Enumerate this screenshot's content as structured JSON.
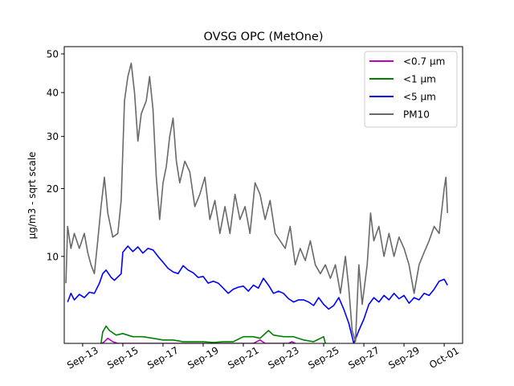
{
  "chart_data": {
    "type": "line",
    "title": "OVSG OPC (MetOne)",
    "xlabel": "",
    "ylabel": "µg/m3 - sqrt scale",
    "y_scale": "sqrt",
    "ylim": [
      2.2,
      52
    ],
    "y_ticks": [
      10,
      20,
      30,
      40,
      50
    ],
    "y_tick_labels": [
      "10",
      "20",
      "30",
      "40",
      "50"
    ],
    "x_ticks": [
      "2023-09-13",
      "2023-09-15",
      "2023-09-17",
      "2023-09-19",
      "2023-09-21",
      "2023-09-23",
      "2023-09-25",
      "2023-09-27",
      "2023-09-29",
      "2023-10-01"
    ],
    "x_tick_labels": [
      "Sep-13",
      "Sep-15",
      "Sep-17",
      "Sep-19",
      "Sep-21",
      "Sep-23",
      "Sep-25",
      "Sep-27",
      "Sep-29",
      "Oct-01"
    ],
    "xlim": [
      "2023-09-12 02:00",
      "2023-10-01 22:00"
    ],
    "legend_position": "top-right",
    "grid": false,
    "series": [
      {
        "name": "<0.7 µm",
        "color": "#bf00bf",
        "points": [
          [
            "2023-09-13 23:00",
            2.2
          ],
          [
            "2023-09-14 02:00",
            2.3
          ],
          [
            "2023-09-14 06:00",
            2.5
          ],
          [
            "2023-09-14 12:00",
            2.3
          ],
          [
            "2023-09-14 18:00",
            2.2
          ],
          [
            "2023-09-21 12:00",
            2.2
          ],
          [
            "2023-09-21 20:00",
            2.4
          ],
          [
            "2023-09-22 02:00",
            2.2
          ],
          [
            "2023-09-23 06:00",
            2.2
          ],
          [
            "2023-09-23 10:00",
            2.3
          ],
          [
            "2023-09-23 14:00",
            2.2
          ]
        ]
      },
      {
        "name": "<1 µm",
        "color": "#008000",
        "points": [
          [
            "2023-09-13 22:00",
            2.2
          ],
          [
            "2023-09-14 00:00",
            2.9
          ],
          [
            "2023-09-14 04:00",
            3.3
          ],
          [
            "2023-09-14 08:00",
            3.0
          ],
          [
            "2023-09-14 16:00",
            2.7
          ],
          [
            "2023-09-15 00:00",
            2.8
          ],
          [
            "2023-09-15 12:00",
            2.6
          ],
          [
            "2023-09-16 00:00",
            2.6
          ],
          [
            "2023-09-16 12:00",
            2.5
          ],
          [
            "2023-09-17 00:00",
            2.4
          ],
          [
            "2023-09-17 12:00",
            2.4
          ],
          [
            "2023-09-18 00:00",
            2.3
          ],
          [
            "2023-09-18 12:00",
            2.3
          ],
          [
            "2023-09-19 00:00",
            2.3
          ],
          [
            "2023-09-19 12:00",
            2.25
          ],
          [
            "2023-09-20 00:00",
            2.3
          ],
          [
            "2023-09-20 12:00",
            2.3
          ],
          [
            "2023-09-21 00:00",
            2.6
          ],
          [
            "2023-09-21 12:00",
            2.6
          ],
          [
            "2023-09-21 20:00",
            2.5
          ],
          [
            "2023-09-22 06:00",
            3.0
          ],
          [
            "2023-09-22 12:00",
            2.7
          ],
          [
            "2023-09-23 00:00",
            2.6
          ],
          [
            "2023-09-23 12:00",
            2.6
          ],
          [
            "2023-09-24 00:00",
            2.4
          ],
          [
            "2023-09-24 12:00",
            2.3
          ],
          [
            "2023-09-25 00:00",
            2.6
          ],
          [
            "2023-09-25 02:00",
            2.2
          ]
        ]
      },
      {
        "name": "<5 µm",
        "color": "#0000ff",
        "points": [
          [
            "2023-09-12 06:00",
            5.2
          ],
          [
            "2023-09-12 10:00",
            6.0
          ],
          [
            "2023-09-12 14:00",
            5.4
          ],
          [
            "2023-09-12 20:00",
            5.9
          ],
          [
            "2023-09-13 02:00",
            5.6
          ],
          [
            "2023-09-13 08:00",
            6.1
          ],
          [
            "2023-09-13 14:00",
            6.0
          ],
          [
            "2023-09-13 20:00",
            7.0
          ],
          [
            "2023-09-14 00:00",
            8.0
          ],
          [
            "2023-09-14 04:00",
            8.4
          ],
          [
            "2023-09-14 10:00",
            7.6
          ],
          [
            "2023-09-14 14:00",
            7.3
          ],
          [
            "2023-09-14 22:00",
            8.0
          ],
          [
            "2023-09-15 00:00",
            10.5
          ],
          [
            "2023-09-15 06:00",
            11.3
          ],
          [
            "2023-09-15 12:00",
            10.6
          ],
          [
            "2023-09-15 18:00",
            11.2
          ],
          [
            "2023-09-16 00:00",
            10.4
          ],
          [
            "2023-09-16 06:00",
            11.0
          ],
          [
            "2023-09-16 12:00",
            10.8
          ],
          [
            "2023-09-16 18:00",
            10.0
          ],
          [
            "2023-09-17 00:00",
            9.3
          ],
          [
            "2023-09-17 06:00",
            8.6
          ],
          [
            "2023-09-17 12:00",
            8.2
          ],
          [
            "2023-09-17 18:00",
            8.0
          ],
          [
            "2023-09-18 00:00",
            8.9
          ],
          [
            "2023-09-18 06:00",
            8.4
          ],
          [
            "2023-09-18 12:00",
            8.1
          ],
          [
            "2023-09-18 18:00",
            7.6
          ],
          [
            "2023-09-19 00:00",
            7.7
          ],
          [
            "2023-09-19 06:00",
            7.0
          ],
          [
            "2023-09-19 12:00",
            7.2
          ],
          [
            "2023-09-19 18:00",
            7.0
          ],
          [
            "2023-09-20 00:00",
            6.5
          ],
          [
            "2023-09-20 06:00",
            6.0
          ],
          [
            "2023-09-20 12:00",
            6.4
          ],
          [
            "2023-09-20 18:00",
            6.6
          ],
          [
            "2023-09-21 00:00",
            6.7
          ],
          [
            "2023-09-21 06:00",
            6.2
          ],
          [
            "2023-09-21 12:00",
            6.8
          ],
          [
            "2023-09-21 18:00",
            6.5
          ],
          [
            "2023-09-22 00:00",
            7.5
          ],
          [
            "2023-09-22 06:00",
            6.8
          ],
          [
            "2023-09-22 12:00",
            6.0
          ],
          [
            "2023-09-22 18:00",
            6.2
          ],
          [
            "2023-09-23 00:00",
            6.0
          ],
          [
            "2023-09-23 06:00",
            5.5
          ],
          [
            "2023-09-23 12:00",
            5.2
          ],
          [
            "2023-09-23 18:00",
            5.4
          ],
          [
            "2023-09-24 00:00",
            5.4
          ],
          [
            "2023-09-24 06:00",
            5.2
          ],
          [
            "2023-09-24 12:00",
            4.9
          ],
          [
            "2023-09-24 18:00",
            5.6
          ],
          [
            "2023-09-25 00:00",
            5.0
          ],
          [
            "2023-09-25 06:00",
            4.6
          ],
          [
            "2023-09-25 12:00",
            4.9
          ],
          [
            "2023-09-25 18:00",
            5.6
          ],
          [
            "2023-09-26 00:00",
            4.6
          ],
          [
            "2023-09-26 06:00",
            3.5
          ],
          [
            "2023-09-26 12:00",
            2.2
          ],
          [
            "2023-09-26 18:00",
            3.0
          ],
          [
            "2023-09-27 00:00",
            3.8
          ],
          [
            "2023-09-27 06:00",
            5.0
          ],
          [
            "2023-09-27 12:00",
            5.6
          ],
          [
            "2023-09-27 18:00",
            5.2
          ],
          [
            "2023-09-28 00:00",
            5.8
          ],
          [
            "2023-09-28 06:00",
            5.4
          ],
          [
            "2023-09-28 12:00",
            6.0
          ],
          [
            "2023-09-28 18:00",
            5.5
          ],
          [
            "2023-09-29 00:00",
            5.8
          ],
          [
            "2023-09-29 06:00",
            5.1
          ],
          [
            "2023-09-29 12:00",
            5.6
          ],
          [
            "2023-09-29 18:00",
            5.4
          ],
          [
            "2023-09-30 00:00",
            6.0
          ],
          [
            "2023-09-30 06:00",
            5.8
          ],
          [
            "2023-09-30 12:00",
            6.4
          ],
          [
            "2023-09-30 18:00",
            7.2
          ],
          [
            "2023-10-01 00:00",
            7.4
          ],
          [
            "2023-10-01 04:00",
            6.8
          ]
        ]
      },
      {
        "name": "PM10",
        "color": "#696969",
        "points": [
          [
            "2023-09-12 04:00",
            7.0
          ],
          [
            "2023-09-12 06:00",
            14.0
          ],
          [
            "2023-09-12 10:00",
            11.0
          ],
          [
            "2023-09-12 14:00",
            13.0
          ],
          [
            "2023-09-12 20:00",
            11.0
          ],
          [
            "2023-09-13 02:00",
            13.0
          ],
          [
            "2023-09-13 06:00",
            10.5
          ],
          [
            "2023-09-13 10:00",
            9.0
          ],
          [
            "2023-09-13 14:00",
            8.0
          ],
          [
            "2023-09-13 18:00",
            12.0
          ],
          [
            "2023-09-13 22:00",
            17.0
          ],
          [
            "2023-09-14 02:00",
            22.0
          ],
          [
            "2023-09-14 06:00",
            16.0
          ],
          [
            "2023-09-14 12:00",
            12.5
          ],
          [
            "2023-09-14 18:00",
            13.0
          ],
          [
            "2023-09-14 22:00",
            18.0
          ],
          [
            "2023-09-15 02:00",
            38.0
          ],
          [
            "2023-09-15 06:00",
            44.0
          ],
          [
            "2023-09-15 10:00",
            47.5
          ],
          [
            "2023-09-15 14:00",
            40.0
          ],
          [
            "2023-09-15 18:00",
            29.0
          ],
          [
            "2023-09-15 22:00",
            35.0
          ],
          [
            "2023-09-16 04:00",
            38.0
          ],
          [
            "2023-09-16 08:00",
            44.0
          ],
          [
            "2023-09-16 12:00",
            36.0
          ],
          [
            "2023-09-16 16:00",
            22.0
          ],
          [
            "2023-09-16 20:00",
            15.0
          ],
          [
            "2023-09-17 00:00",
            21.0
          ],
          [
            "2023-09-17 04:00",
            24.0
          ],
          [
            "2023-09-17 08:00",
            30.0
          ],
          [
            "2023-09-17 12:00",
            34.0
          ],
          [
            "2023-09-17 16:00",
            25.0
          ],
          [
            "2023-09-17 20:00",
            21.0
          ],
          [
            "2023-09-18 02:00",
            25.0
          ],
          [
            "2023-09-18 08:00",
            23.0
          ],
          [
            "2023-09-18 14:00",
            17.0
          ],
          [
            "2023-09-18 20:00",
            19.0
          ],
          [
            "2023-09-19 02:00",
            22.0
          ],
          [
            "2023-09-19 08:00",
            15.0
          ],
          [
            "2023-09-19 14:00",
            18.0
          ],
          [
            "2023-09-19 20:00",
            13.0
          ],
          [
            "2023-09-20 02:00",
            17.0
          ],
          [
            "2023-09-20 08:00",
            13.0
          ],
          [
            "2023-09-20 14:00",
            19.0
          ],
          [
            "2023-09-20 20:00",
            15.0
          ],
          [
            "2023-09-21 02:00",
            17.0
          ],
          [
            "2023-09-21 08:00",
            13.0
          ],
          [
            "2023-09-21 14:00",
            21.0
          ],
          [
            "2023-09-21 20:00",
            19.0
          ],
          [
            "2023-09-22 02:00",
            15.0
          ],
          [
            "2023-09-22 08:00",
            18.0
          ],
          [
            "2023-09-22 14:00",
            13.0
          ],
          [
            "2023-09-22 20:00",
            12.0
          ],
          [
            "2023-09-23 02:00",
            11.0
          ],
          [
            "2023-09-23 08:00",
            14.0
          ],
          [
            "2023-09-23 14:00",
            9.0
          ],
          [
            "2023-09-23 20:00",
            11.0
          ],
          [
            "2023-09-24 02:00",
            9.5
          ],
          [
            "2023-09-24 08:00",
            12.0
          ],
          [
            "2023-09-24 14:00",
            9.0
          ],
          [
            "2023-09-24 20:00",
            8.0
          ],
          [
            "2023-09-25 02:00",
            9.0
          ],
          [
            "2023-09-25 08:00",
            7.5
          ],
          [
            "2023-09-25 14:00",
            9.0
          ],
          [
            "2023-09-25 20:00",
            6.0
          ],
          [
            "2023-09-26 02:00",
            10.0
          ],
          [
            "2023-09-26 06:00",
            6.5
          ],
          [
            "2023-09-26 10:00",
            3.0
          ],
          [
            "2023-09-26 14:00",
            2.3
          ],
          [
            "2023-09-26 18:00",
            9.0
          ],
          [
            "2023-09-26 22:00",
            5.0
          ],
          [
            "2023-09-27 04:00",
            9.0
          ],
          [
            "2023-09-27 08:00",
            16.0
          ],
          [
            "2023-09-27 12:00",
            12.0
          ],
          [
            "2023-09-27 18:00",
            14.0
          ],
          [
            "2023-09-28 00:00",
            10.0
          ],
          [
            "2023-09-28 06:00",
            13.0
          ],
          [
            "2023-09-28 12:00",
            10.0
          ],
          [
            "2023-09-28 18:00",
            12.5
          ],
          [
            "2023-09-29 00:00",
            11.0
          ],
          [
            "2023-09-29 06:00",
            9.0
          ],
          [
            "2023-09-29 12:00",
            6.0
          ],
          [
            "2023-09-29 18:00",
            9.0
          ],
          [
            "2023-09-30 00:00",
            10.5
          ],
          [
            "2023-09-30 06:00",
            12.0
          ],
          [
            "2023-09-30 12:00",
            14.0
          ],
          [
            "2023-09-30 18:00",
            13.0
          ],
          [
            "2023-10-01 00:00",
            20.0
          ],
          [
            "2023-10-01 02:00",
            22.0
          ],
          [
            "2023-10-01 04:00",
            16.0
          ]
        ]
      }
    ]
  }
}
